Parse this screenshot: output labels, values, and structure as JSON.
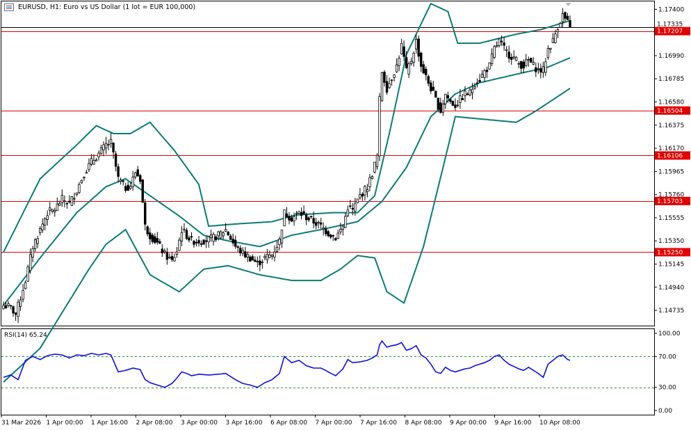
{
  "header": {
    "title": "EURUSD, H1:  Euro vs US Dollar (1 lot = EUR 100,000)"
  },
  "chart_data": {
    "type": "candlestick",
    "price_axis": {
      "ylim": [
        1.146,
        1.1747
      ],
      "ticks": [
        "1.17400",
        "1.16990",
        "1.16785",
        "1.16580",
        "1.16375",
        "1.16170",
        "1.15965",
        "1.15760",
        "1.15555",
        "1.15350",
        "1.15145",
        "1.14940",
        "1.14735"
      ]
    },
    "current_price": {
      "bid": "1.17207",
      "ask_label": "1.17335"
    },
    "horizontal_levels": [
      {
        "label": "1.17207",
        "value": 1.17207
      },
      {
        "label": "1.16504",
        "value": 1.16504
      },
      {
        "label": "1.16106",
        "value": 1.16106
      },
      {
        "label": "1.15703",
        "value": 1.15703
      },
      {
        "label": "1.15250",
        "value": 1.1525
      }
    ],
    "time_labels": [
      "31 Mar 2026",
      "1 Apr 00:00",
      "1 Apr 16:00",
      "2 Apr 08:00",
      "3 Apr 00:00",
      "3 Apr 16:00",
      "6 Apr 08:00",
      "7 Apr 00:00",
      "7 Apr 16:00",
      "8 Apr 08:00",
      "9 Apr 00:00",
      "9 Apr 16:00",
      "10 Apr 08:00"
    ],
    "close_series_anchors": [
      [
        0,
        1.1478
      ],
      [
        3,
        1.1476
      ],
      [
        5,
        1.147
      ],
      [
        7,
        1.1485
      ],
      [
        9,
        1.15
      ],
      [
        12,
        1.153
      ],
      [
        15,
        1.1545
      ],
      [
        18,
        1.156
      ],
      [
        21,
        1.1563
      ],
      [
        24,
        1.1572
      ],
      [
        27,
        1.1568
      ],
      [
        30,
        1.158
      ],
      [
        33,
        1.1595
      ],
      [
        36,
        1.1605
      ],
      [
        39,
        1.1612
      ],
      [
        42,
        1.162
      ],
      [
        44,
        1.1622
      ],
      [
        47,
        1.159
      ],
      [
        50,
        1.1582
      ],
      [
        52,
        1.1584
      ],
      [
        54,
        1.1596
      ],
      [
        56,
        1.159
      ],
      [
        58,
        1.1548
      ],
      [
        60,
        1.154
      ],
      [
        63,
        1.1533
      ],
      [
        66,
        1.1523
      ],
      [
        69,
        1.1517
      ],
      [
        71,
        1.1526
      ],
      [
        73,
        1.1545
      ],
      [
        75,
        1.154
      ],
      [
        77,
        1.1535
      ],
      [
        80,
        1.1535
      ],
      [
        84,
        1.1536
      ],
      [
        88,
        1.154
      ],
      [
        91,
        1.1545
      ],
      [
        95,
        1.153
      ],
      [
        98,
        1.1524
      ],
      [
        101,
        1.152
      ],
      [
        104,
        1.1515
      ],
      [
        107,
        1.152
      ],
      [
        110,
        1.1523
      ],
      [
        113,
        1.1535
      ],
      [
        115,
        1.156
      ],
      [
        118,
        1.1555
      ],
      [
        121,
        1.156
      ],
      [
        124,
        1.1556
      ],
      [
        127,
        1.1552
      ],
      [
        130,
        1.1548
      ],
      [
        133,
        1.1542
      ],
      [
        136,
        1.1538
      ],
      [
        139,
        1.1548
      ],
      [
        141,
        1.1565
      ],
      [
        143,
        1.1562
      ],
      [
        146,
        1.1575
      ],
      [
        149,
        1.1583
      ],
      [
        151,
        1.1595
      ],
      [
        153,
        1.161
      ],
      [
        154,
        1.166
      ],
      [
        155,
        1.1685
      ],
      [
        157,
        1.167
      ],
      [
        159,
        1.168
      ],
      [
        161,
        1.169
      ],
      [
        163,
        1.1708
      ],
      [
        165,
        1.1685
      ],
      [
        167,
        1.1695
      ],
      [
        169,
        1.1712
      ],
      [
        171,
        1.169
      ],
      [
        173,
        1.168
      ],
      [
        175,
        1.167
      ],
      [
        177,
        1.166
      ],
      [
        179,
        1.165
      ],
      [
        181,
        1.1665
      ],
      [
        183,
        1.1658
      ],
      [
        185,
        1.1655
      ],
      [
        187,
        1.166
      ],
      [
        189,
        1.1665
      ],
      [
        191,
        1.1666
      ],
      [
        193,
        1.1675
      ],
      [
        195,
        1.1678
      ],
      [
        197,
        1.1685
      ],
      [
        199,
        1.169
      ],
      [
        201,
        1.1705
      ],
      [
        203,
        1.1712
      ],
      [
        205,
        1.1705
      ],
      [
        207,
        1.17
      ],
      [
        209,
        1.1697
      ],
      [
        211,
        1.1692
      ],
      [
        213,
        1.169
      ],
      [
        215,
        1.1695
      ],
      [
        217,
        1.169
      ],
      [
        219,
        1.1686
      ],
      [
        221,
        1.1686
      ],
      [
        223,
        1.1705
      ],
      [
        225,
        1.1712
      ],
      [
        227,
        1.1725
      ],
      [
        229,
        1.1735
      ],
      [
        231,
        1.1728
      ],
      [
        232,
        1.1722
      ]
    ],
    "bollinger_bands": {
      "upper_anchors": [
        [
          0,
          1.1525
        ],
        [
          15,
          1.159
        ],
        [
          30,
          1.162
        ],
        [
          38,
          1.1637
        ],
        [
          45,
          1.163
        ],
        [
          52,
          1.163
        ],
        [
          60,
          1.164
        ],
        [
          70,
          1.1615
        ],
        [
          80,
          1.1585
        ],
        [
          84,
          1.1548
        ],
        [
          95,
          1.155
        ],
        [
          110,
          1.1552
        ],
        [
          120,
          1.1558
        ],
        [
          135,
          1.156
        ],
        [
          145,
          1.156
        ],
        [
          152,
          1.1575
        ],
        [
          158,
          1.163
        ],
        [
          165,
          1.17
        ],
        [
          175,
          1.1745
        ],
        [
          182,
          1.1738
        ],
        [
          186,
          1.171
        ],
        [
          195,
          1.171
        ],
        [
          210,
          1.1718
        ],
        [
          220,
          1.1722
        ],
        [
          232,
          1.173
        ]
      ],
      "middle_anchors": [
        [
          0,
          1.1478
        ],
        [
          15,
          1.152
        ],
        [
          30,
          1.156
        ],
        [
          42,
          1.1583
        ],
        [
          50,
          1.159
        ],
        [
          60,
          1.1575
        ],
        [
          72,
          1.1557
        ],
        [
          82,
          1.154
        ],
        [
          92,
          1.1535
        ],
        [
          105,
          1.153
        ],
        [
          118,
          1.154
        ],
        [
          130,
          1.1545
        ],
        [
          145,
          1.1552
        ],
        [
          155,
          1.157
        ],
        [
          165,
          1.16
        ],
        [
          175,
          1.1645
        ],
        [
          185,
          1.1665
        ],
        [
          195,
          1.1675
        ],
        [
          205,
          1.168
        ],
        [
          215,
          1.1685
        ],
        [
          222,
          1.1688
        ],
        [
          232,
          1.1697
        ]
      ],
      "lower_anchors": [
        [
          0,
          1.141
        ],
        [
          15,
          1.144
        ],
        [
          25,
          1.1475
        ],
        [
          35,
          1.151
        ],
        [
          42,
          1.1532
        ],
        [
          50,
          1.1545
        ],
        [
          60,
          1.1505
        ],
        [
          72,
          1.149
        ],
        [
          82,
          1.151
        ],
        [
          92,
          1.1513
        ],
        [
          105,
          1.1505
        ],
        [
          118,
          1.15
        ],
        [
          130,
          1.15
        ],
        [
          138,
          1.151
        ],
        [
          145,
          1.1522
        ],
        [
          152,
          1.152
        ],
        [
          157,
          1.149
        ],
        [
          164,
          1.148
        ],
        [
          172,
          1.153
        ],
        [
          180,
          1.16
        ],
        [
          185,
          1.1645
        ],
        [
          195,
          1.1643
        ],
        [
          210,
          1.164
        ],
        [
          218,
          1.165
        ],
        [
          225,
          1.166
        ],
        [
          232,
          1.167
        ]
      ]
    },
    "rsi": {
      "label": "RSI(14) 65.24",
      "ticks": [
        "100.00",
        "70.00",
        "30.00",
        "0.00"
      ],
      "levels": [
        70,
        30
      ],
      "ylim": [
        0,
        100
      ],
      "anchors": [
        [
          0,
          43
        ],
        [
          3,
          46
        ],
        [
          6,
          40
        ],
        [
          9,
          65
        ],
        [
          12,
          70
        ],
        [
          15,
          66
        ],
        [
          18,
          71
        ],
        [
          21,
          73
        ],
        [
          24,
          72
        ],
        [
          27,
          68
        ],
        [
          30,
          72
        ],
        [
          33,
          71
        ],
        [
          36,
          74
        ],
        [
          39,
          72
        ],
        [
          42,
          74
        ],
        [
          44,
          72
        ],
        [
          47,
          50
        ],
        [
          50,
          52
        ],
        [
          53,
          55
        ],
        [
          56,
          53
        ],
        [
          58,
          40
        ],
        [
          60,
          36
        ],
        [
          63,
          33
        ],
        [
          66,
          30
        ],
        [
          69,
          35
        ],
        [
          71,
          42
        ],
        [
          73,
          50
        ],
        [
          75,
          48
        ],
        [
          77,
          45
        ],
        [
          80,
          47
        ],
        [
          84,
          46
        ],
        [
          88,
          47
        ],
        [
          91,
          48
        ],
        [
          95,
          40
        ],
        [
          98,
          35
        ],
        [
          101,
          33
        ],
        [
          104,
          30
        ],
        [
          107,
          36
        ],
        [
          110,
          40
        ],
        [
          113,
          48
        ],
        [
          115,
          70
        ],
        [
          118,
          62
        ],
        [
          121,
          65
        ],
        [
          124,
          58
        ],
        [
          127,
          55
        ],
        [
          130,
          55
        ],
        [
          133,
          50
        ],
        [
          136,
          45
        ],
        [
          139,
          54
        ],
        [
          141,
          66
        ],
        [
          143,
          62
        ],
        [
          146,
          63
        ],
        [
          149,
          65
        ],
        [
          151,
          68
        ],
        [
          153,
          72
        ],
        [
          154,
          85
        ],
        [
          155,
          90
        ],
        [
          157,
          82
        ],
        [
          159,
          84
        ],
        [
          161,
          85
        ],
        [
          163,
          88
        ],
        [
          165,
          78
        ],
        [
          167,
          80
        ],
        [
          169,
          84
        ],
        [
          171,
          72
        ],
        [
          173,
          68
        ],
        [
          175,
          60
        ],
        [
          177,
          50
        ],
        [
          179,
          48
        ],
        [
          181,
          56
        ],
        [
          183,
          52
        ],
        [
          185,
          50
        ],
        [
          187,
          52
        ],
        [
          189,
          54
        ],
        [
          191,
          55
        ],
        [
          193,
          58
        ],
        [
          195,
          60
        ],
        [
          197,
          62
        ],
        [
          199,
          65
        ],
        [
          201,
          70
        ],
        [
          203,
          72
        ],
        [
          205,
          65
        ],
        [
          207,
          60
        ],
        [
          209,
          57
        ],
        [
          211,
          54
        ],
        [
          213,
          52
        ],
        [
          215,
          56
        ],
        [
          217,
          52
        ],
        [
          219,
          48
        ],
        [
          221,
          43
        ],
        [
          223,
          60
        ],
        [
          225,
          65
        ],
        [
          227,
          70
        ],
        [
          229,
          72
        ],
        [
          231,
          66
        ],
        [
          232,
          65
        ]
      ]
    }
  }
}
